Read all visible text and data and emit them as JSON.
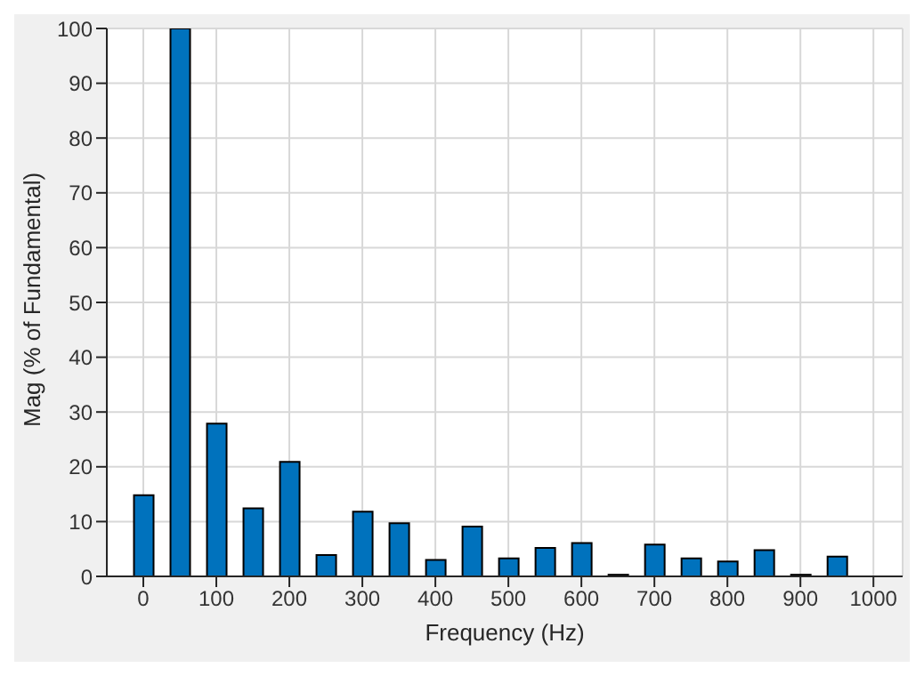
{
  "chart_data": {
    "type": "bar",
    "xlabel": "Frequency (Hz)",
    "ylabel": "Mag (% of Fundamental)",
    "x": [
      0,
      50,
      100,
      150,
      200,
      250,
      300,
      350,
      400,
      450,
      500,
      550,
      600,
      650,
      700,
      750,
      800,
      850,
      900,
      950
    ],
    "values": [
      14.8,
      100,
      27.9,
      12.4,
      20.9,
      3.9,
      11.8,
      9.7,
      3.0,
      9.1,
      3.3,
      5.2,
      6.1,
      0.3,
      5.8,
      3.3,
      2.7,
      4.8,
      0.3,
      3.6
    ],
    "color": "#0072bd",
    "xlim": [
      -50,
      1040
    ],
    "xticks": [
      0,
      100,
      200,
      300,
      400,
      500,
      600,
      700,
      800,
      900,
      1000
    ],
    "ylim": [
      0,
      100
    ],
    "yticks": [
      0,
      10,
      20,
      30,
      40,
      50,
      60,
      70,
      80,
      90,
      100
    ],
    "grid": true,
    "legend": false
  }
}
